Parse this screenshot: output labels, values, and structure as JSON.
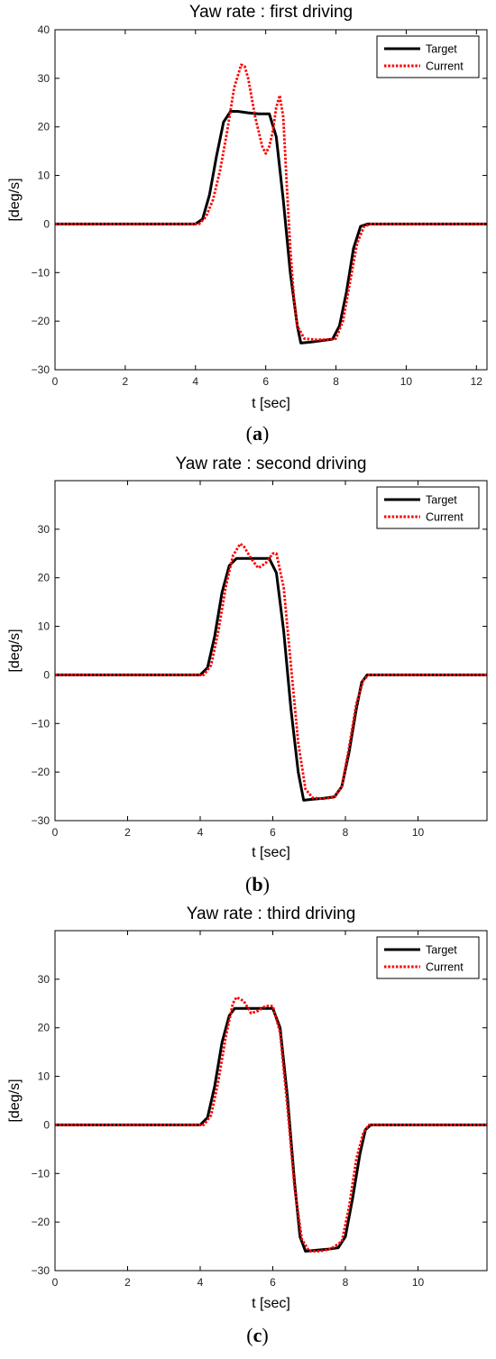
{
  "chart_data": [
    {
      "type": "line",
      "title": "Yaw rate : first driving",
      "xlabel": "t [sec]",
      "ylabel": "[deg/s]",
      "xlim": [
        0,
        12.3
      ],
      "ylim": [
        -30,
        40
      ],
      "xticks": [
        0,
        2,
        4,
        6,
        8,
        10,
        12
      ],
      "yticks": [
        -30,
        -20,
        -10,
        0,
        10,
        20,
        30,
        40
      ],
      "legend_position": "top-right",
      "caption_letter": "a",
      "series": [
        {
          "name": "Target",
          "color": "#000000",
          "style": "solid",
          "x": [
            0,
            4.0,
            4.2,
            4.4,
            4.6,
            4.8,
            5.0,
            5.2,
            5.5,
            5.8,
            6.1,
            6.3,
            6.5,
            6.7,
            6.9,
            7.0,
            7.3,
            7.6,
            7.9,
            8.1,
            8.3,
            8.5,
            8.7,
            8.9,
            12.3
          ],
          "y": [
            0,
            0,
            1.0,
            6,
            14,
            21,
            23.2,
            23.2,
            22.9,
            22.7,
            22.7,
            18,
            5,
            -10,
            -21,
            -24.5,
            -24.3,
            -24,
            -23.7,
            -21,
            -14,
            -5,
            -0.5,
            0,
            0
          ]
        },
        {
          "name": "Current",
          "color": "#ff0000",
          "style": "dotted",
          "x": [
            0,
            4.1,
            4.3,
            4.5,
            4.7,
            4.9,
            5.1,
            5.3,
            5.4,
            5.5,
            5.7,
            5.9,
            6.0,
            6.1,
            6.2,
            6.3,
            6.4,
            6.5,
            6.6,
            6.7,
            6.8,
            6.9,
            7.1,
            7.4,
            7.7,
            8.0,
            8.2,
            8.4,
            8.6,
            8.8,
            9.0,
            12.3
          ],
          "y": [
            0,
            0,
            1.5,
            5,
            11,
            19,
            28,
            32.8,
            32.5,
            30,
            22,
            16,
            14.5,
            16,
            19,
            24,
            26.5,
            22,
            8,
            -5,
            -15,
            -21,
            -23.6,
            -23.8,
            -23.8,
            -23.6,
            -20,
            -12,
            -4,
            -0.5,
            0,
            0
          ]
        }
      ]
    },
    {
      "type": "line",
      "title": "Yaw rate : second driving",
      "xlabel": "t [sec]",
      "ylabel": "[deg/s]",
      "xlim": [
        0,
        11.9
      ],
      "ylim": [
        -30,
        40
      ],
      "xticks": [
        0,
        2,
        4,
        6,
        8,
        10
      ],
      "yticks": [
        -30,
        -20,
        -10,
        0,
        10,
        20,
        30
      ],
      "legend_position": "top-right",
      "caption_letter": "b",
      "series": [
        {
          "name": "Target",
          "color": "#000000",
          "style": "solid",
          "x": [
            0,
            4.0,
            4.2,
            4.4,
            4.6,
            4.8,
            5.0,
            5.3,
            5.6,
            5.9,
            6.1,
            6.3,
            6.5,
            6.7,
            6.85,
            7.1,
            7.4,
            7.7,
            7.9,
            8.1,
            8.3,
            8.45,
            8.6,
            11.9
          ],
          "y": [
            0,
            0,
            1.5,
            8,
            17,
            22.5,
            24,
            24,
            24,
            24,
            21,
            9,
            -7,
            -20,
            -25.8,
            -25.6,
            -25.4,
            -25.1,
            -23,
            -16,
            -7,
            -1.5,
            0,
            0
          ]
        },
        {
          "name": "Current",
          "color": "#ff0000",
          "style": "dotted",
          "x": [
            0,
            4.1,
            4.3,
            4.5,
            4.7,
            4.9,
            5.1,
            5.2,
            5.4,
            5.6,
            5.8,
            6.0,
            6.1,
            6.3,
            6.5,
            6.7,
            6.9,
            7.1,
            7.4,
            7.7,
            7.9,
            8.1,
            8.3,
            8.5,
            8.65,
            11.9
          ],
          "y": [
            0,
            0,
            2,
            9,
            18,
            24.5,
            27,
            26.5,
            24,
            22,
            23,
            25,
            25,
            18,
            2,
            -14,
            -23.5,
            -25.3,
            -25.5,
            -25.2,
            -23,
            -15,
            -6,
            -1,
            0,
            0
          ]
        }
      ]
    },
    {
      "type": "line",
      "title": "Yaw rate : third driving",
      "xlabel": "t [sec]",
      "ylabel": "[deg/s]",
      "xlim": [
        0,
        11.9
      ],
      "ylim": [
        -30,
        40
      ],
      "xticks": [
        0,
        2,
        4,
        6,
        8,
        10
      ],
      "yticks": [
        -30,
        -20,
        -10,
        0,
        10,
        20,
        30
      ],
      "legend_position": "top-right",
      "caption_letter": "c",
      "series": [
        {
          "name": "Target",
          "color": "#000000",
          "style": "solid",
          "x": [
            0,
            4.0,
            4.2,
            4.4,
            4.6,
            4.8,
            4.95,
            5.3,
            5.7,
            6.0,
            6.2,
            6.4,
            6.6,
            6.75,
            6.9,
            7.2,
            7.5,
            7.8,
            8.0,
            8.2,
            8.4,
            8.55,
            8.7,
            11.9
          ],
          "y": [
            0,
            0,
            1.5,
            8,
            17,
            22.5,
            24,
            24,
            24,
            24,
            20,
            6,
            -12,
            -23,
            -26,
            -25.8,
            -25.6,
            -25.3,
            -23,
            -15,
            -6,
            -1,
            0,
            0
          ]
        },
        {
          "name": "Current",
          "color": "#ff0000",
          "style": "dotted",
          "x": [
            0,
            4.1,
            4.3,
            4.5,
            4.7,
            4.9,
            5.0,
            5.2,
            5.4,
            5.6,
            5.8,
            6.0,
            6.2,
            6.4,
            6.6,
            6.8,
            7.0,
            7.3,
            7.6,
            7.9,
            8.1,
            8.3,
            8.5,
            8.65,
            11.9
          ],
          "y": [
            0,
            0,
            2,
            9,
            18,
            25,
            26.3,
            25.5,
            23,
            23.5,
            24.5,
            24.5,
            19,
            4,
            -13,
            -23.5,
            -26,
            -26,
            -25.5,
            -24,
            -17,
            -7,
            -1.5,
            0,
            0
          ]
        }
      ]
    }
  ]
}
